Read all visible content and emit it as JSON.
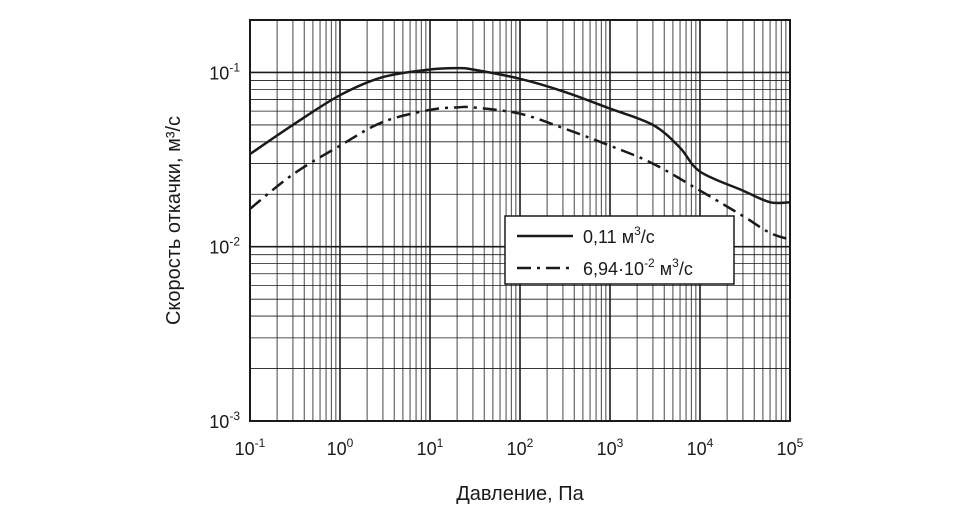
{
  "chart_data": {
    "type": "line",
    "title": "",
    "xlabel": "Давление, Па",
    "ylabel": "Скорость откачки, м³/с",
    "xscale": "log",
    "yscale": "log",
    "xlim": [
      0.1,
      100000
    ],
    "ylim": [
      0.001,
      0.2
    ],
    "grid": true,
    "x_ticks": [
      {
        "base": "10",
        "exp": "-1",
        "value": 0.1
      },
      {
        "base": "10",
        "exp": "0",
        "value": 1
      },
      {
        "base": "10",
        "exp": "1",
        "value": 10
      },
      {
        "base": "10",
        "exp": "2",
        "value": 100
      },
      {
        "base": "10",
        "exp": "3",
        "value": 1000
      },
      {
        "base": "10",
        "exp": "4",
        "value": 10000
      },
      {
        "base": "10",
        "exp": "5",
        "value": 100000
      }
    ],
    "y_ticks": [
      {
        "base": "10",
        "exp": "-3",
        "value": 0.001
      },
      {
        "base": "10",
        "exp": "-2",
        "value": 0.01
      },
      {
        "base": "10",
        "exp": "-1",
        "value": 0.1
      }
    ],
    "legend_position": "center-right",
    "series": [
      {
        "name": "0,11 м³/с",
        "label_main": "0,11 м",
        "label_sup": "3",
        "label_end": "/с",
        "style": "solid",
        "color": "#1a1a1a",
        "x": [
          0.1,
          0.3,
          1,
          3,
          10,
          20,
          30,
          100,
          300,
          1000,
          3000,
          6000,
          10000,
          30000,
          60000,
          100000
        ],
        "y": [
          0.034,
          0.05,
          0.074,
          0.094,
          0.104,
          0.106,
          0.104,
          0.092,
          0.078,
          0.062,
          0.05,
          0.037,
          0.027,
          0.021,
          0.018,
          0.018
        ]
      },
      {
        "name": "6,94·10⁻² м³/с",
        "label_main": "6,94·10",
        "label_sup": "-2",
        "label_mid": " м",
        "label_sup2": "3",
        "label_end": "/с",
        "style": "dashdot",
        "color": "#1a1a1a",
        "x": [
          0.1,
          0.3,
          1,
          3,
          10,
          20,
          30,
          100,
          300,
          1000,
          3000,
          10000,
          30000,
          60000,
          100000
        ],
        "y": [
          0.0165,
          0.026,
          0.038,
          0.052,
          0.061,
          0.063,
          0.063,
          0.058,
          0.048,
          0.038,
          0.03,
          0.021,
          0.015,
          0.012,
          0.011
        ]
      }
    ]
  }
}
